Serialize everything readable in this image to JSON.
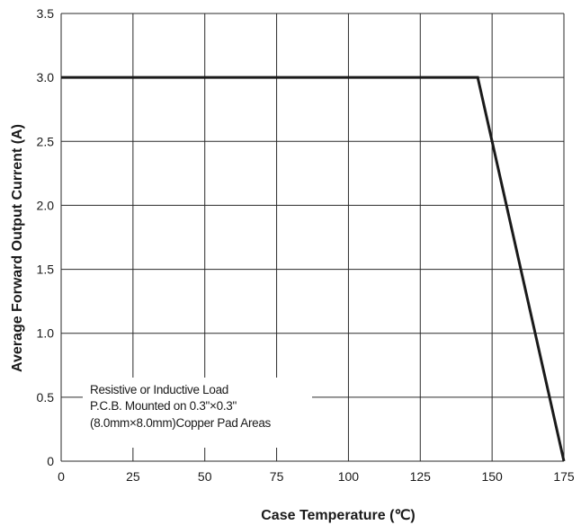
{
  "chart_data": {
    "type": "line",
    "title": "",
    "xlabel": "Case Temperature (℃)",
    "ylabel": "Average Forward Output Current (A)",
    "xlim": [
      0,
      175
    ],
    "ylim": [
      0,
      3.5
    ],
    "x_ticks": [
      "0",
      "25",
      "50",
      "75",
      "100",
      "125",
      "150",
      "175"
    ],
    "y_ticks": [
      "0",
      "0.5",
      "1.0",
      "1.5",
      "2.0",
      "2.5",
      "3.0",
      "3.5"
    ],
    "grid": true,
    "series": [
      {
        "x": [
          0,
          145,
          175
        ],
        "y": [
          3.0,
          3.0,
          0
        ]
      }
    ],
    "annotations": [
      "Resistive or Inductive Load",
      "P.C.B. Mounted on 0.3\"×0.3\"",
      "(8.0mm×8.0mm)Copper Pad Areas"
    ],
    "colors": {
      "line": "#1a1a1a",
      "grid": "#2a2a2a"
    }
  }
}
